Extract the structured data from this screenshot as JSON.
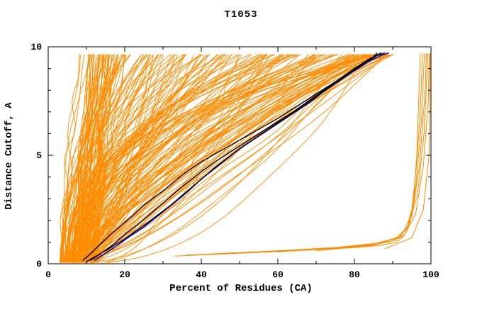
{
  "chart_data": {
    "type": "line",
    "title": "T1053",
    "xlabel": "Percent of Residues (CA)",
    "ylabel": "Distance Cutoff, A",
    "xlim": [
      0,
      100
    ],
    "ylim": [
      0,
      10
    ],
    "x_ticks": [
      0,
      20,
      40,
      60,
      80,
      100
    ],
    "y_ticks": [
      0,
      5,
      10
    ],
    "x_minor_step": 10,
    "y_minor_step": 1,
    "grid": false,
    "legend": "none",
    "colors": {
      "predictions": "#ff8c00",
      "highlight_black": "#000000",
      "highlight_blue": "#0000cc"
    },
    "description": "CASP-style GDT plot for target T1053: ~200 orange prediction curves (percent of CA residues under each distance cutoff), three black highlighted model curves and one blue highlighted model curve; a cluster of poor predictions hugs the bottom then rises vertically near x=97-100.",
    "orange_band": {
      "seed": 20220714,
      "count": 185,
      "bundle_count": 16,
      "x_start_range": [
        3,
        13
      ],
      "x_top_range": [
        8,
        93
      ],
      "power_range": [
        0.45,
        2.85
      ],
      "wiggle_max": 1.4,
      "top_y": 9.72
    },
    "series": [
      {
        "name": "outlier-1",
        "color": "#ff8c00",
        "width": 1,
        "points": [
          [
            33,
            0.35
          ],
          [
            45,
            0.45
          ],
          [
            58,
            0.55
          ],
          [
            70,
            0.65
          ],
          [
            80,
            0.75
          ],
          [
            87,
            0.85
          ],
          [
            91,
            1.0
          ],
          [
            93,
            1.3
          ],
          [
            94.5,
            1.9
          ],
          [
            95.5,
            3.0
          ],
          [
            96.3,
            5.0
          ],
          [
            96.8,
            7.5
          ],
          [
            97.2,
            9.7
          ]
        ]
      },
      {
        "name": "outlier-2",
        "color": "#ff8c00",
        "width": 1,
        "points": [
          [
            36,
            0.4
          ],
          [
            50,
            0.5
          ],
          [
            65,
            0.62
          ],
          [
            78,
            0.75
          ],
          [
            86,
            0.9
          ],
          [
            91,
            1.1
          ],
          [
            93.5,
            1.6
          ],
          [
            95,
            2.5
          ],
          [
            96.2,
            4.5
          ],
          [
            97.2,
            7.0
          ],
          [
            97.8,
            9.7
          ]
        ]
      },
      {
        "name": "outlier-3",
        "color": "#ff8c00",
        "width": 1,
        "points": [
          [
            42,
            0.45
          ],
          [
            60,
            0.6
          ],
          [
            75,
            0.75
          ],
          [
            86,
            0.95
          ],
          [
            92,
            1.25
          ],
          [
            94.5,
            2.0
          ],
          [
            96,
            3.5
          ],
          [
            97.5,
            6.5
          ],
          [
            98.3,
            9.7
          ]
        ]
      },
      {
        "name": "outlier-4",
        "color": "#ff8c00",
        "width": 1,
        "points": [
          [
            50,
            0.5
          ],
          [
            70,
            0.68
          ],
          [
            84,
            0.88
          ],
          [
            92,
            1.2
          ],
          [
            95,
            2.2
          ],
          [
            97,
            4.5
          ],
          [
            98.5,
            8.0
          ],
          [
            98.8,
            9.7
          ]
        ]
      },
      {
        "name": "outlier-5",
        "color": "#ff8c00",
        "width": 1,
        "points": [
          [
            60,
            0.55
          ],
          [
            80,
            0.8
          ],
          [
            90,
            1.05
          ],
          [
            94,
            1.7
          ],
          [
            96.5,
            3.2
          ],
          [
            98.2,
            6.0
          ],
          [
            99.2,
            9.7
          ]
        ]
      },
      {
        "name": "outlier-6",
        "color": "#ff8c00",
        "width": 1,
        "points": [
          [
            70,
            0.6
          ],
          [
            85,
            0.85
          ],
          [
            93,
            1.3
          ],
          [
            96,
            2.3
          ],
          [
            98,
            4.5
          ],
          [
            99.3,
            7.5
          ],
          [
            99.6,
            9.7
          ]
        ]
      },
      {
        "name": "outlier-7",
        "color": "#ff8c00",
        "width": 1,
        "points": [
          [
            88,
            0.7
          ],
          [
            95,
            1.2
          ],
          [
            98,
            2.5
          ],
          [
            99.5,
            5.0
          ],
          [
            99.8,
            9.7
          ]
        ]
      },
      {
        "name": "model-blue",
        "color": "#0000cc",
        "width": 1.5,
        "points": [
          [
            12,
            0.15
          ],
          [
            16,
            0.6
          ],
          [
            20,
            1.1
          ],
          [
            25,
            1.7
          ],
          [
            30,
            2.4
          ],
          [
            35,
            3.1
          ],
          [
            40,
            3.9
          ],
          [
            45,
            4.6
          ],
          [
            50,
            5.3
          ],
          [
            55,
            5.9
          ],
          [
            60,
            6.5
          ],
          [
            65,
            7.1
          ],
          [
            70,
            7.7
          ],
          [
            75,
            8.3
          ],
          [
            80,
            8.9
          ],
          [
            84,
            9.35
          ],
          [
            87,
            9.6
          ],
          [
            89,
            9.72
          ]
        ]
      },
      {
        "name": "model-black-1",
        "color": "#000000",
        "width": 1.4,
        "points": [
          [
            9,
            0.15
          ],
          [
            11,
            0.45
          ],
          [
            13,
            0.8
          ],
          [
            16,
            1.3
          ],
          [
            19,
            1.75
          ],
          [
            22,
            2.2
          ],
          [
            25,
            2.7
          ],
          [
            28,
            3.1
          ],
          [
            31,
            3.5
          ],
          [
            34,
            3.95
          ],
          [
            37,
            4.35
          ],
          [
            40,
            4.7
          ],
          [
            44,
            5.1
          ],
          [
            48,
            5.5
          ],
          [
            52,
            5.9
          ],
          [
            56,
            6.3
          ],
          [
            60,
            6.7
          ],
          [
            64,
            7.15
          ],
          [
            68,
            7.6
          ],
          [
            72,
            8.05
          ],
          [
            76,
            8.5
          ],
          [
            80,
            8.95
          ],
          [
            83,
            9.3
          ],
          [
            85,
            9.55
          ],
          [
            86,
            9.72
          ]
        ]
      },
      {
        "name": "model-black-2",
        "color": "#000000",
        "width": 1.4,
        "points": [
          [
            11,
            0.15
          ],
          [
            14,
            0.5
          ],
          [
            17,
            0.9
          ],
          [
            20,
            1.35
          ],
          [
            24,
            1.9
          ],
          [
            28,
            2.5
          ],
          [
            32,
            3.1
          ],
          [
            36,
            3.7
          ],
          [
            40,
            4.25
          ],
          [
            44,
            4.75
          ],
          [
            48,
            5.2
          ],
          [
            52,
            5.65
          ],
          [
            56,
            6.1
          ],
          [
            60,
            6.55
          ],
          [
            64,
            7.0
          ],
          [
            68,
            7.5
          ],
          [
            72,
            8.0
          ],
          [
            76,
            8.5
          ],
          [
            80,
            9.0
          ],
          [
            84,
            9.45
          ],
          [
            87,
            9.72
          ]
        ]
      },
      {
        "name": "model-black-3",
        "color": "#000000",
        "width": 1.4,
        "points": [
          [
            10,
            0.1
          ],
          [
            15,
            0.6
          ],
          [
            20,
            1.15
          ],
          [
            26,
            1.9
          ],
          [
            32,
            2.7
          ],
          [
            38,
            3.6
          ],
          [
            44,
            4.5
          ],
          [
            50,
            5.3
          ],
          [
            56,
            6.0
          ],
          [
            62,
            6.7
          ],
          [
            68,
            7.4
          ],
          [
            74,
            8.2
          ],
          [
            79,
            8.8
          ],
          [
            83,
            9.3
          ],
          [
            86,
            9.6
          ],
          [
            88,
            9.72
          ]
        ]
      }
    ]
  }
}
